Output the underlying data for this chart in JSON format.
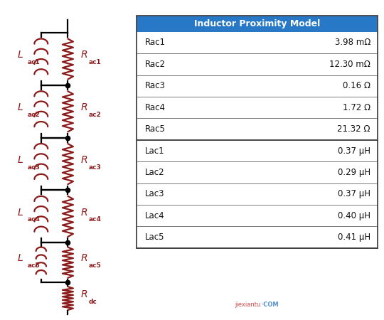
{
  "title": "Inductor Proximity Model",
  "table_header_bg": "#2878C8",
  "table_header_color": "#FFFFFF",
  "table_border_color": "#444444",
  "background_color": "#FFFFFF",
  "circuit_color": "#8B1A1A",
  "wire_color": "#000000",
  "node_color": "#000000",
  "label_color": "#8B1A1A",
  "table_rows": [
    [
      "Rac1",
      "3.98 mΩ"
    ],
    [
      "Rac2",
      "12.30 mΩ"
    ],
    [
      "Rac3",
      "0.16 Ω"
    ],
    [
      "Rac4",
      "1.72 Ω"
    ],
    [
      "Rac5",
      "21.32 Ω"
    ],
    [
      "Lac1",
      "0.37 μH"
    ],
    [
      "Lac2",
      "0.29 μH"
    ],
    [
      "Lac3",
      "0.37 μH"
    ],
    [
      "Lac4",
      "0.40 μH"
    ],
    [
      "Lac5",
      "0.41 μH"
    ]
  ],
  "watermark_text": "jiexiantu",
  "watermark_com": "·COM",
  "num_stages": 5,
  "figsize": [
    5.4,
    4.5
  ],
  "dpi": 100
}
